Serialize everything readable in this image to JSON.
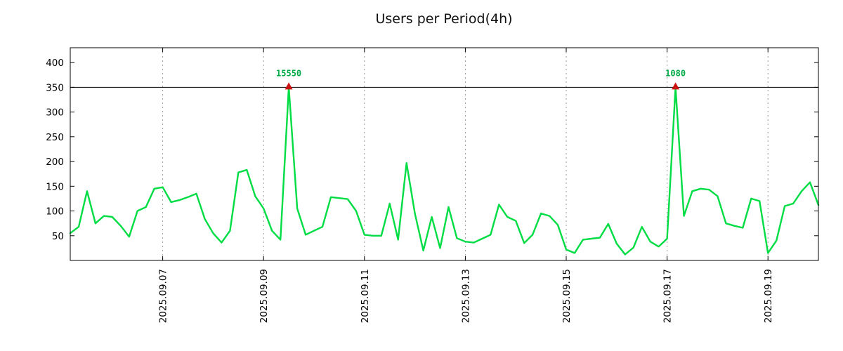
{
  "page": {
    "background": "#ffffff"
  },
  "chart_data": {
    "type": "line",
    "title": "Users per Period(4h)",
    "series_name": "users",
    "values": [
      55,
      68,
      140,
      75,
      90,
      88,
      70,
      48,
      100,
      108,
      145,
      148,
      118,
      122,
      128,
      135,
      84,
      55,
      36,
      60,
      178,
      183,
      130,
      105,
      60,
      42,
      15550,
      105,
      52,
      60,
      68,
      128,
      126,
      124,
      100,
      52,
      50,
      50,
      115,
      42,
      197,
      95,
      20,
      88,
      25,
      108,
      45,
      38,
      36,
      44,
      52,
      113,
      88,
      80,
      35,
      52,
      95,
      90,
      72,
      22,
      15,
      42,
      44,
      46,
      74,
      34,
      12,
      26,
      68,
      38,
      28,
      44,
      1080,
      90,
      140,
      145,
      143,
      130,
      75,
      70,
      66,
      125,
      120,
      15,
      40,
      110,
      115,
      140,
      158,
      112
    ],
    "period_hours": 4,
    "x_ticks": [
      {
        "index": 11,
        "label": "2025.09.07"
      },
      {
        "index": 23,
        "label": "2025.09.09"
      },
      {
        "index": 35,
        "label": "2025.09.11"
      },
      {
        "index": 47,
        "label": "2025.09.13"
      },
      {
        "index": 59,
        "label": "2025.09.15"
      },
      {
        "index": 71,
        "label": "2025.09.17"
      },
      {
        "index": 83,
        "label": "2025.09.19"
      }
    ],
    "y_ticks": [
      50,
      100,
      150,
      200,
      250,
      300,
      350,
      400
    ],
    "ylim": [
      0,
      430
    ],
    "clip_line": 350,
    "peaks": [
      {
        "index": 26,
        "label": "15550"
      },
      {
        "index": 72,
        "label": "1080"
      }
    ],
    "colors": {
      "line": "#00dd44",
      "peak_marker": "#cc1111",
      "peak_label": "#00aa44",
      "grid": "#999999",
      "axis": "#000000",
      "title": "#111111"
    },
    "grid": "vertical-dashed",
    "legend": "none"
  }
}
